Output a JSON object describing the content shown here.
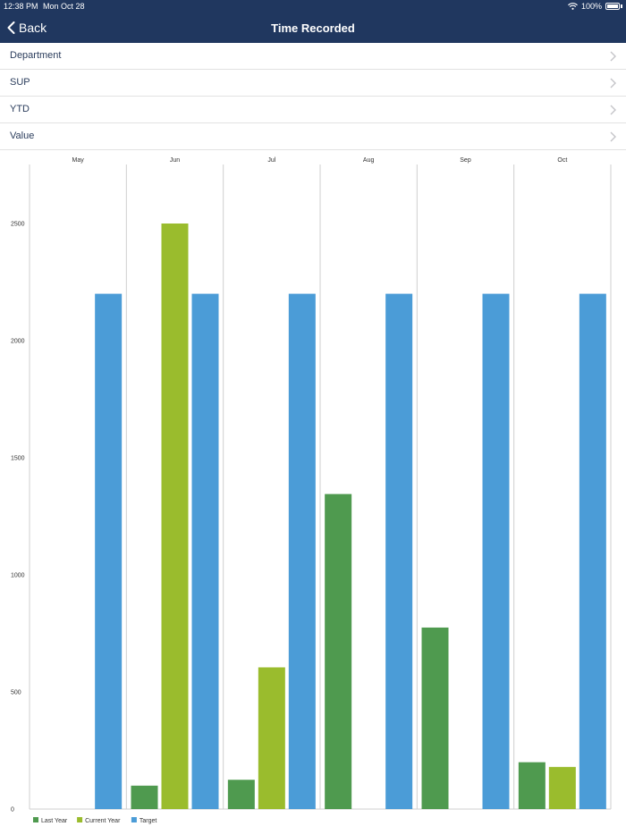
{
  "status_bar": {
    "time": "12:38 PM",
    "date": "Mon Oct 28",
    "battery": "100%"
  },
  "nav": {
    "back_label": "Back",
    "title": "Time Recorded"
  },
  "filters": [
    {
      "label": "Department"
    },
    {
      "label": "SUP"
    },
    {
      "label": "YTD"
    },
    {
      "label": "Value"
    }
  ],
  "colors": {
    "header": "#20375f",
    "last_year": "#4f9a4f",
    "current_year": "#9abc2d",
    "target": "#4b9cd7"
  },
  "chart_data": {
    "type": "bar",
    "categories": [
      "May",
      "Jun",
      "Jul",
      "Aug",
      "Sep",
      "Oct"
    ],
    "y_ticks": [
      "0",
      "500",
      "1000",
      "1500",
      "2000",
      "2500"
    ],
    "ylim": [
      0,
      2750
    ],
    "series": [
      {
        "name": "Last Year",
        "color": "#4f9a4f",
        "values": [
          0,
          100,
          125,
          1345,
          775,
          200
        ]
      },
      {
        "name": "Current Year",
        "color": "#9abc2d",
        "values": [
          0,
          2500,
          605,
          0,
          0,
          180
        ]
      },
      {
        "name": "Target",
        "color": "#4b9cd7",
        "values": [
          2200,
          2200,
          2200,
          2200,
          2200,
          2200
        ]
      }
    ],
    "legend_position": "bottom-left",
    "grid": "vertical category separators"
  }
}
